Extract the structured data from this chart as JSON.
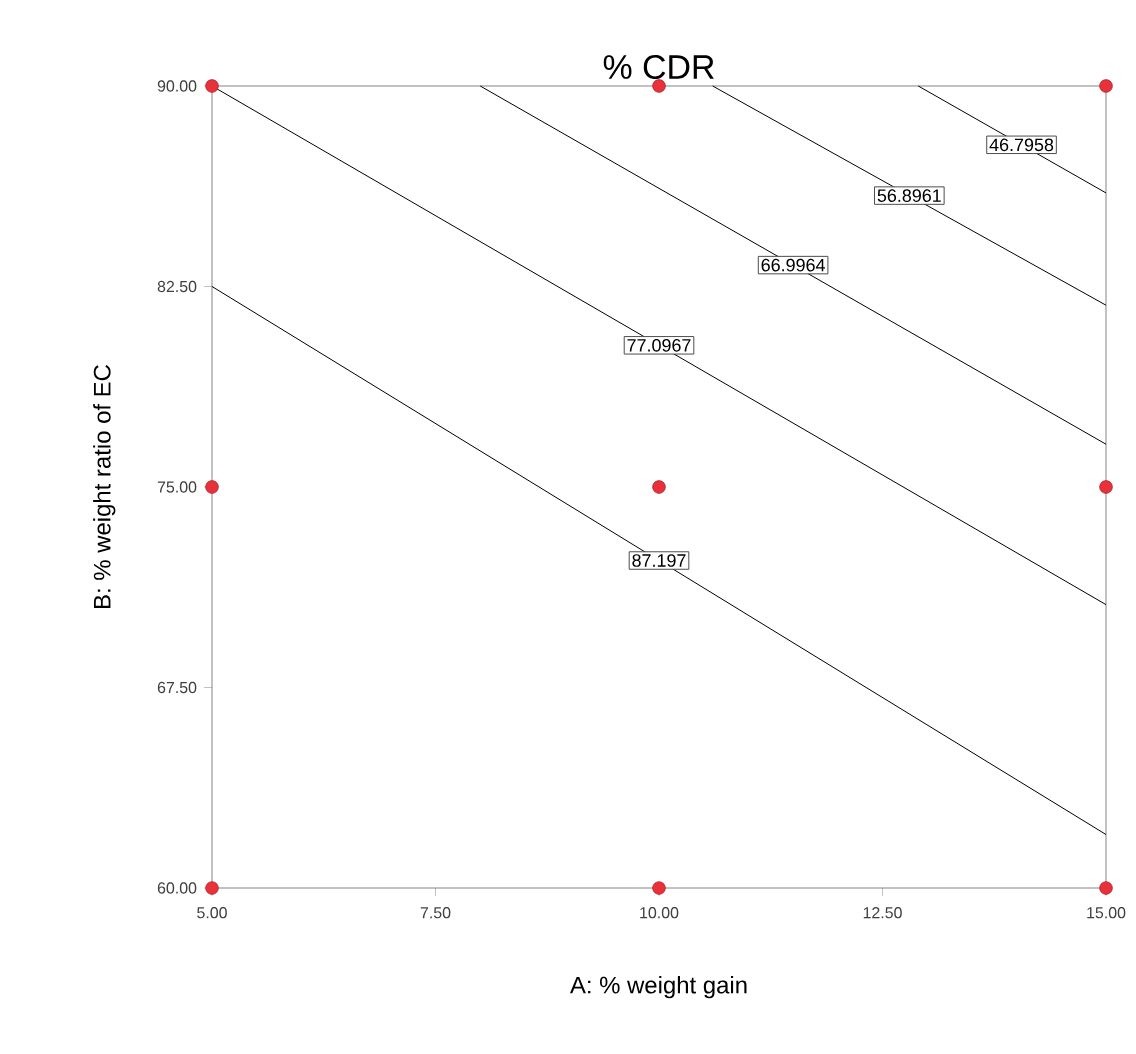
{
  "chart_data": {
    "type": "line",
    "title": "% CDR",
    "xlabel": "A: % weight gain",
    "ylabel": "B: % weight ratio of EC",
    "xlim": [
      5,
      15
    ],
    "ylim": [
      60,
      90
    ],
    "xticks": [
      {
        "value": 5,
        "label": "5.00"
      },
      {
        "value": 7.5,
        "label": "7.50"
      },
      {
        "value": 10,
        "label": "10.00"
      },
      {
        "value": 12.5,
        "label": "12.50"
      },
      {
        "value": 15,
        "label": "15.00"
      }
    ],
    "yticks": [
      {
        "value": 60,
        "label": "60.00"
      },
      {
        "value": 67.5,
        "label": "67.50"
      },
      {
        "value": 75,
        "label": "75.00"
      },
      {
        "value": 82.5,
        "label": "82.50"
      },
      {
        "value": 90,
        "label": "90.00"
      }
    ],
    "series": [
      {
        "name": "87.197",
        "color": "#000000",
        "x": [
          5,
          15
        ],
        "values": [
          82.5,
          62.0
        ]
      },
      {
        "name": "77.0967",
        "color": "#000000",
        "x": [
          5,
          15
        ],
        "values": [
          90,
          70.6
        ]
      },
      {
        "name": "66.9964",
        "color": "#000000",
        "x": [
          8.0,
          15
        ],
        "values": [
          90,
          76.6
        ]
      },
      {
        "name": "56.8961",
        "color": "#000000",
        "x": [
          10.6,
          15
        ],
        "values": [
          90,
          81.8
        ]
      },
      {
        "name": "46.7958",
        "color": "#000000",
        "x": [
          12.9,
          15
        ],
        "values": [
          90,
          86.0
        ]
      },
      {
        "type": "scatter",
        "color": "#e8313a",
        "marker": "circle",
        "x": [
          5,
          10,
          15,
          5,
          10,
          15,
          5,
          10,
          15
        ],
        "values": [
          90,
          90,
          90,
          75,
          75,
          75,
          60,
          60,
          60
        ]
      }
    ],
    "grid": false,
    "line_style": "solid"
  }
}
